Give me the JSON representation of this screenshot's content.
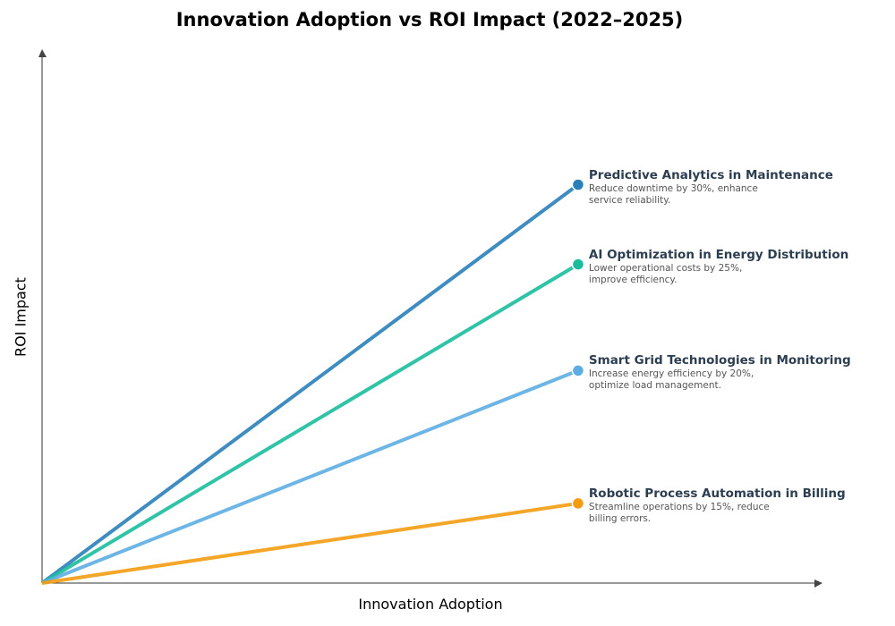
{
  "chart_data": {
    "type": "line",
    "title": "Innovation Adoption vs ROI Impact (2022–2025)",
    "xlabel": "Innovation Adoption",
    "ylabel": "ROI Impact",
    "xlim": [
      0,
      10
    ],
    "ylim": [
      0,
      10
    ],
    "grid": false,
    "ticks": false,
    "series": [
      {
        "name": "Predictive Analytics in Maintenance",
        "description": "Reduce downtime by 30%, enhance service reliability.",
        "color": "#2980b9",
        "x": [
          0,
          6.9
        ],
        "y": [
          0,
          7.5
        ]
      },
      {
        "name": "AI Optimization in Energy Distribution",
        "description": "Lower operational costs by 25%, improve efficiency.",
        "color": "#1abc9c",
        "x": [
          0,
          6.9
        ],
        "y": [
          0,
          6.0
        ]
      },
      {
        "name": "Smart Grid Technologies in Monitoring",
        "description": "Increase energy efficiency by 20%, optimize load management.",
        "color": "#5dade2",
        "x": [
          0,
          6.9
        ],
        "y": [
          0,
          4.0
        ]
      },
      {
        "name": "Robotic Process Automation in Billing",
        "description": "Streamline operations by 15%, reduce billing errors.",
        "color": "#f39c12",
        "x": [
          0,
          6.9
        ],
        "y": [
          0,
          1.5
        ]
      }
    ]
  }
}
